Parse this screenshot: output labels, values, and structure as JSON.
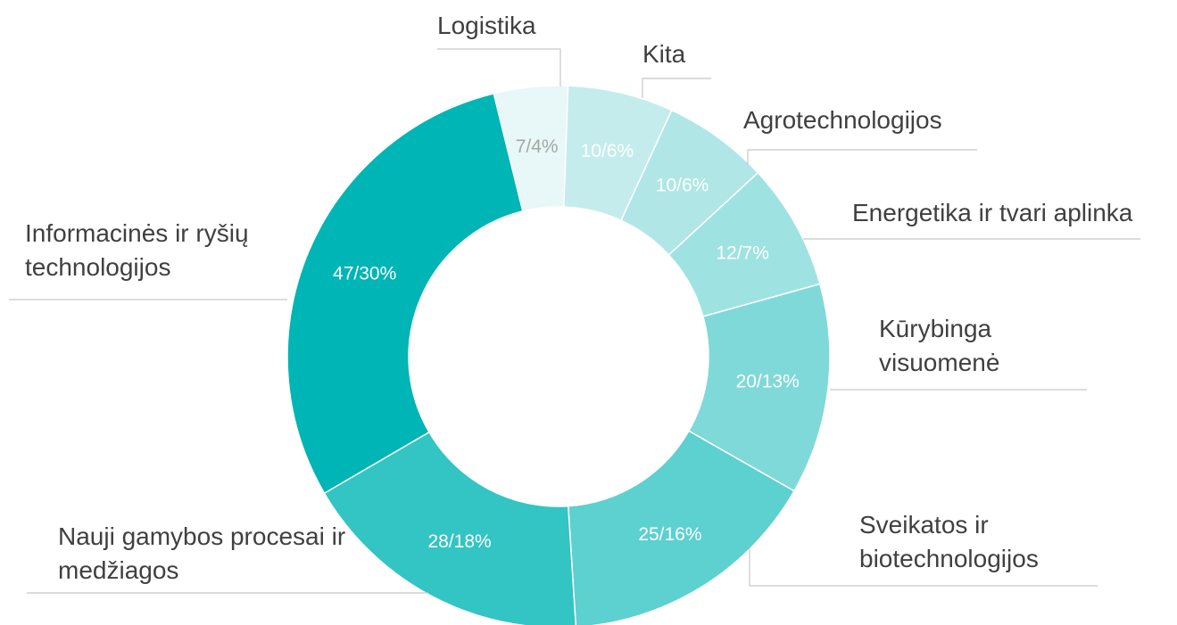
{
  "chart_data": {
    "type": "donut",
    "categories": [
      "Logistika",
      "Kita",
      "Agrotechnologijos",
      "Energetika ir tvari aplinka",
      "Kūrybinga visuomenė",
      "Sveikatos ir biotechnologijos",
      "Nauji gamybos procesai ir medžiagos",
      "Informacinės ir ryšių technologijos"
    ],
    "values": [
      7,
      10,
      10,
      12,
      20,
      25,
      28,
      47
    ],
    "value_labels": [
      "7/4%",
      "10/6%",
      "10/6%",
      "12/7%",
      "20/13%",
      "25/16%",
      "28/18%",
      "47/30%"
    ],
    "colors": [
      "#e8f7f7",
      "#c5ecec",
      "#b0e6e6",
      "#9fe2e2",
      "#7fd9d9",
      "#5dd0d0",
      "#33c4c4",
      "#00b5b5"
    ]
  }
}
